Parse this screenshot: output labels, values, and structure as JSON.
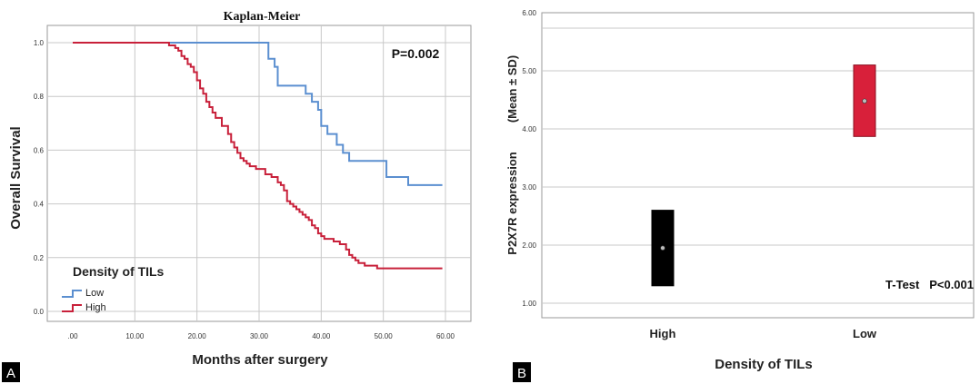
{
  "panels": {
    "a": {
      "label": "A"
    },
    "b": {
      "label": "B"
    }
  },
  "chart_data": [
    {
      "type": "line",
      "title": "Kaplan-Meier",
      "xlabel": "Months after surgery",
      "ylabel": "Overall Survival",
      "xlim": [
        0,
        60
      ],
      "ylim": [
        0,
        1.0
      ],
      "x_ticks": [
        ".00",
        "10.00",
        "20.00",
        "30.00",
        "40.00",
        "50.00",
        "60.00"
      ],
      "y_ticks": [
        "0.0",
        "0.2",
        "0.4",
        "0.6",
        "0.8",
        "1.0"
      ],
      "grid": true,
      "annotation": "P=0.002",
      "legend_title": "Density of TILs",
      "legend_position": "bottom-left",
      "series": [
        {
          "name": "Low",
          "color": "#5b8fd0",
          "x": [
            0,
            31,
            31.5,
            32.5,
            33,
            37,
            37.5,
            38.5,
            39.5,
            40,
            41,
            42.5,
            43.5,
            44.5,
            50.5,
            54,
            59.5
          ],
          "y": [
            1.0,
            1.0,
            0.94,
            0.91,
            0.84,
            0.84,
            0.81,
            0.78,
            0.75,
            0.69,
            0.66,
            0.62,
            0.59,
            0.56,
            0.5,
            0.47,
            0.47
          ]
        },
        {
          "name": "High",
          "color": "#c8203a",
          "x": [
            0,
            15,
            15.5,
            16.5,
            17,
            17.5,
            18,
            18.5,
            19,
            19.5,
            20,
            20.5,
            21,
            21.5,
            22,
            22.5,
            23,
            24,
            25,
            25.5,
            26,
            26.5,
            27,
            27.5,
            28,
            28.5,
            29,
            29.5,
            30,
            31,
            32,
            33,
            33.5,
            34,
            34.5,
            35,
            35.5,
            36,
            36.5,
            37,
            37.5,
            38,
            38.5,
            39,
            39.5,
            40,
            40.5,
            41,
            42,
            42.5,
            43,
            44,
            44.5,
            45,
            45.5,
            46,
            46.5,
            47,
            48,
            49,
            51,
            55,
            59.5
          ],
          "y": [
            1.0,
            1.0,
            0.99,
            0.98,
            0.97,
            0.95,
            0.94,
            0.92,
            0.91,
            0.89,
            0.86,
            0.83,
            0.81,
            0.78,
            0.76,
            0.74,
            0.72,
            0.69,
            0.66,
            0.63,
            0.61,
            0.59,
            0.57,
            0.56,
            0.55,
            0.54,
            0.54,
            0.53,
            0.53,
            0.51,
            0.5,
            0.48,
            0.47,
            0.45,
            0.41,
            0.4,
            0.39,
            0.38,
            0.37,
            0.36,
            0.35,
            0.34,
            0.32,
            0.31,
            0.29,
            0.28,
            0.27,
            0.27,
            0.26,
            0.26,
            0.25,
            0.23,
            0.21,
            0.2,
            0.19,
            0.18,
            0.18,
            0.17,
            0.17,
            0.16,
            0.16,
            0.16,
            0.16
          ]
        }
      ]
    },
    {
      "type": "box",
      "title": "",
      "xlabel": "Density of TILs",
      "ylabel": "P2X7R expression",
      "ylabel2": "(Mean ± SD)",
      "ylim": [
        0.75,
        6.0
      ],
      "y_ticks": [
        "1.00",
        "2.00",
        "3.00",
        "4.00",
        "5.00",
        "6.00"
      ],
      "categories": [
        "High",
        "Low"
      ],
      "grid": true,
      "annotation": "T-Test   P<0.001",
      "series": [
        {
          "category": "High",
          "mean": 1.95,
          "lower": 1.3,
          "upper": 2.6,
          "color": "#000000"
        },
        {
          "category": "Low",
          "mean": 4.48,
          "lower": 3.87,
          "upper": 5.1,
          "color": "#d8203a"
        }
      ]
    }
  ]
}
